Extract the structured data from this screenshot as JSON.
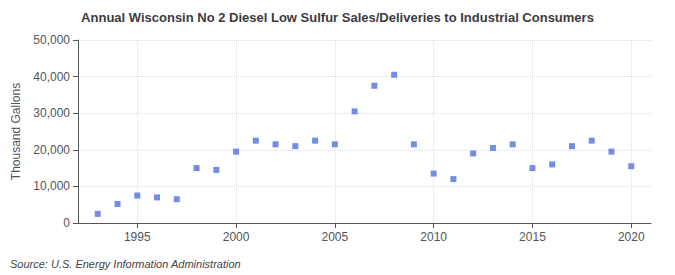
{
  "chart_data": {
    "type": "scatter",
    "title": "Annual Wisconsin No 2 Diesel Low Sulfur Sales/Deliveries to Industrial Consumers",
    "ylabel": "Thousand Gallons",
    "source": "Source: U.S. Energy Information Administration",
    "x": [
      1993,
      1994,
      1995,
      1996,
      1997,
      1998,
      1999,
      2000,
      2001,
      2002,
      2003,
      2004,
      2005,
      2006,
      2007,
      2008,
      2009,
      2010,
      2011,
      2012,
      2013,
      2014,
      2015,
      2016,
      2017,
      2018,
      2019,
      2020
    ],
    "values": [
      2500,
      5200,
      7500,
      7000,
      6500,
      15000,
      14500,
      19500,
      22500,
      21500,
      21000,
      22500,
      21500,
      30500,
      37500,
      40500,
      21500,
      13500,
      12000,
      19000,
      20500,
      21500,
      15000,
      16000,
      21000,
      22500,
      19500,
      15500
    ],
    "xlim": [
      1992,
      2021
    ],
    "xticks": [
      1995,
      2000,
      2005,
      2010,
      2015,
      2020
    ],
    "ylim": [
      0,
      50000
    ],
    "yticks": [
      0,
      {
        "value": 10000,
        "label": "10,000"
      },
      {
        "value": 20000,
        "label": "20,000"
      },
      {
        "value": 30000,
        "label": "30,000"
      },
      {
        "value": 40000,
        "label": "40,000"
      },
      {
        "value": 50000,
        "label": "50,000"
      }
    ],
    "grid": true,
    "marker": "square"
  }
}
